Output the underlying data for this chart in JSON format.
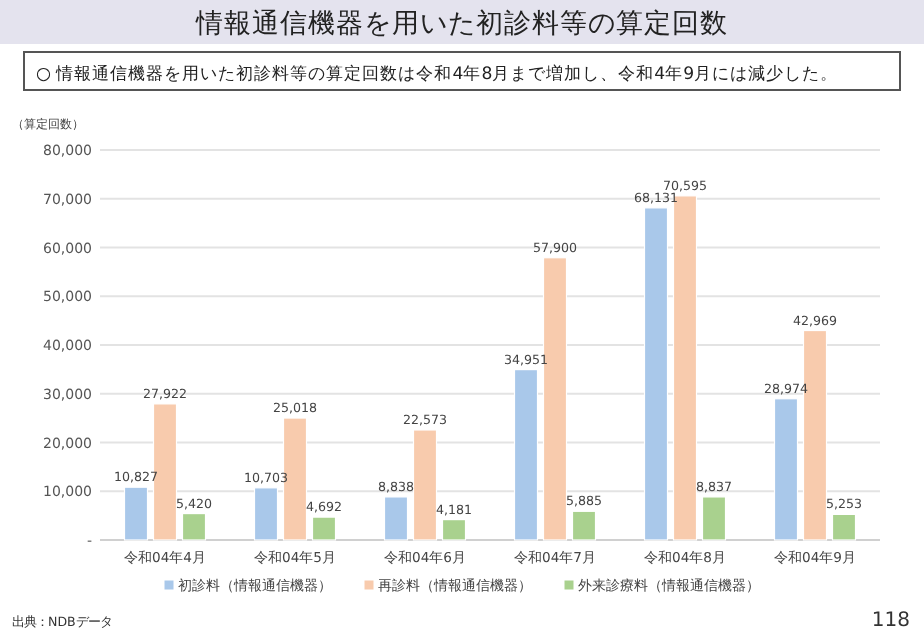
{
  "chart_data": {
    "type": "bar",
    "title": "情報通信機器を用いた初診料等の算定回数",
    "subtitle": "○  情報通信機器を用いた初診料等の算定回数は令和4年8月まで増加し、令和4年9月には減少した。",
    "ylabel": "（算定回数）",
    "categories": [
      "令和04年4月",
      "令和04年5月",
      "令和04年6月",
      "令和04年7月",
      "令和04年8月",
      "令和04年9月"
    ],
    "series": [
      {
        "name": "初診料（情報通信機器）",
        "color": "#a9c8ea",
        "values": [
          10827,
          10703,
          8838,
          34951,
          68131,
          28974
        ],
        "value_labels": [
          "10,827",
          "10,703",
          "8,838",
          "34,951",
          "68,131",
          "28,974"
        ]
      },
      {
        "name": "再診料（情報通信機器）",
        "color": "#f8cbad",
        "values": [
          27922,
          25018,
          22573,
          57900,
          70595,
          42969
        ],
        "value_labels": [
          "27,922",
          "25,018",
          "22,573",
          "57,900",
          "70,595",
          "42,969"
        ]
      },
      {
        "name": "外来診療料（情報通信機器）",
        "color": "#a9d18e",
        "values": [
          5420,
          4692,
          4181,
          5885,
          8837,
          5253
        ],
        "value_labels": [
          "5,420",
          "4,692",
          "4,181",
          "5,885",
          "8,837",
          "5,253"
        ]
      }
    ],
    "ylim": [
      0,
      80000
    ],
    "yticks": [
      {
        "value": 0,
        "label": "-"
      },
      {
        "value": 10000,
        "label": "10,000"
      },
      {
        "value": 20000,
        "label": "20,000"
      },
      {
        "value": 30000,
        "label": "30,000"
      },
      {
        "value": 40000,
        "label": "40,000"
      },
      {
        "value": 50000,
        "label": "50,000"
      },
      {
        "value": 60000,
        "label": "60,000"
      },
      {
        "value": 70000,
        "label": "70,000"
      },
      {
        "value": 80000,
        "label": "80,000"
      }
    ],
    "grid": "y",
    "legend": "bottom",
    "annotations": [
      "出典：NDBデータ",
      "118"
    ]
  }
}
